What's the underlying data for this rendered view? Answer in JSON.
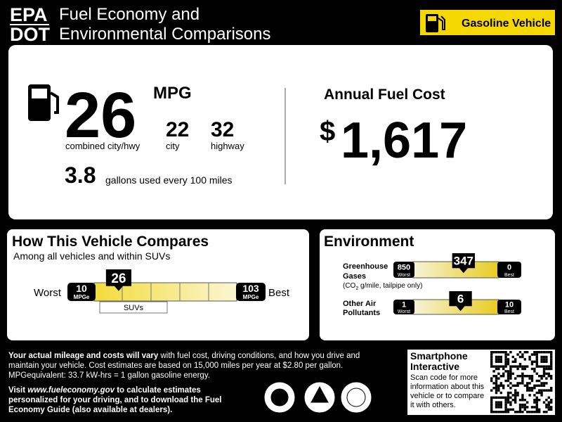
{
  "header": {
    "agency_top": "EPA",
    "agency_bottom": "DOT",
    "title_line1": "Fuel Economy and",
    "title_line2": "Environmental Comparisons",
    "vehicle_type": "Gasoline Vehicle"
  },
  "fuel_economy": {
    "combined": "26",
    "unit": "MPG",
    "combined_label": "combined city/hwy",
    "city": "22",
    "city_label": "city",
    "highway": "32",
    "highway_label": "highway",
    "gallons": "3.8",
    "gallons_label": "gallons used every 100 miles"
  },
  "annual_cost": {
    "title": "Annual Fuel Cost",
    "currency": "$",
    "amount": "1,617"
  },
  "compare": {
    "title": "How This Vehicle Compares",
    "subtitle": "Among all vehicles and within SUVs",
    "worst_label": "Worst",
    "best_label": "Best",
    "min": 10,
    "max": 103,
    "value": 26,
    "unit": "MPGe",
    "range_label": "SUVs"
  },
  "environment": {
    "title": "Environment",
    "greenhouse": {
      "label_line1": "Greenhouse",
      "label_line2": "Gases",
      "note_prefix": "(CO",
      "note_sub": "2",
      "note_suffix": " g/mile, tailpipe only)",
      "worst": 850,
      "best": 0,
      "value": 347,
      "worst_label": "Worst",
      "best_label": "Best"
    },
    "pollutants": {
      "label_line1": "Other Air",
      "label_line2": "Pollutants",
      "worst": 1,
      "best": 10,
      "value": 6,
      "worst_label": "Worst",
      "best_label": "Best"
    }
  },
  "footer": {
    "note_bold": "Your actual mileage and costs will vary",
    "note_rest": " with fuel cost, driving conditions, and how you drive and maintain your vehicle. Cost estimates are based on 15,000 miles per year at $2.80 per gallon. MPGequivalent: 33.7 kW-hrs = 1 gallon gasoline energy.",
    "visit_prefix": "Visit ",
    "visit_url": "www.fueleconomy.gov",
    "visit_rest": " to calculate estimates personalized for your driving, and to download the Fuel Economy Guide (also available at dealers)."
  },
  "smartphone": {
    "title_line1": "Smartphone",
    "title_line2": "Interactive",
    "text": "Scan code for more information about this vehicle or to compare it with others."
  }
}
